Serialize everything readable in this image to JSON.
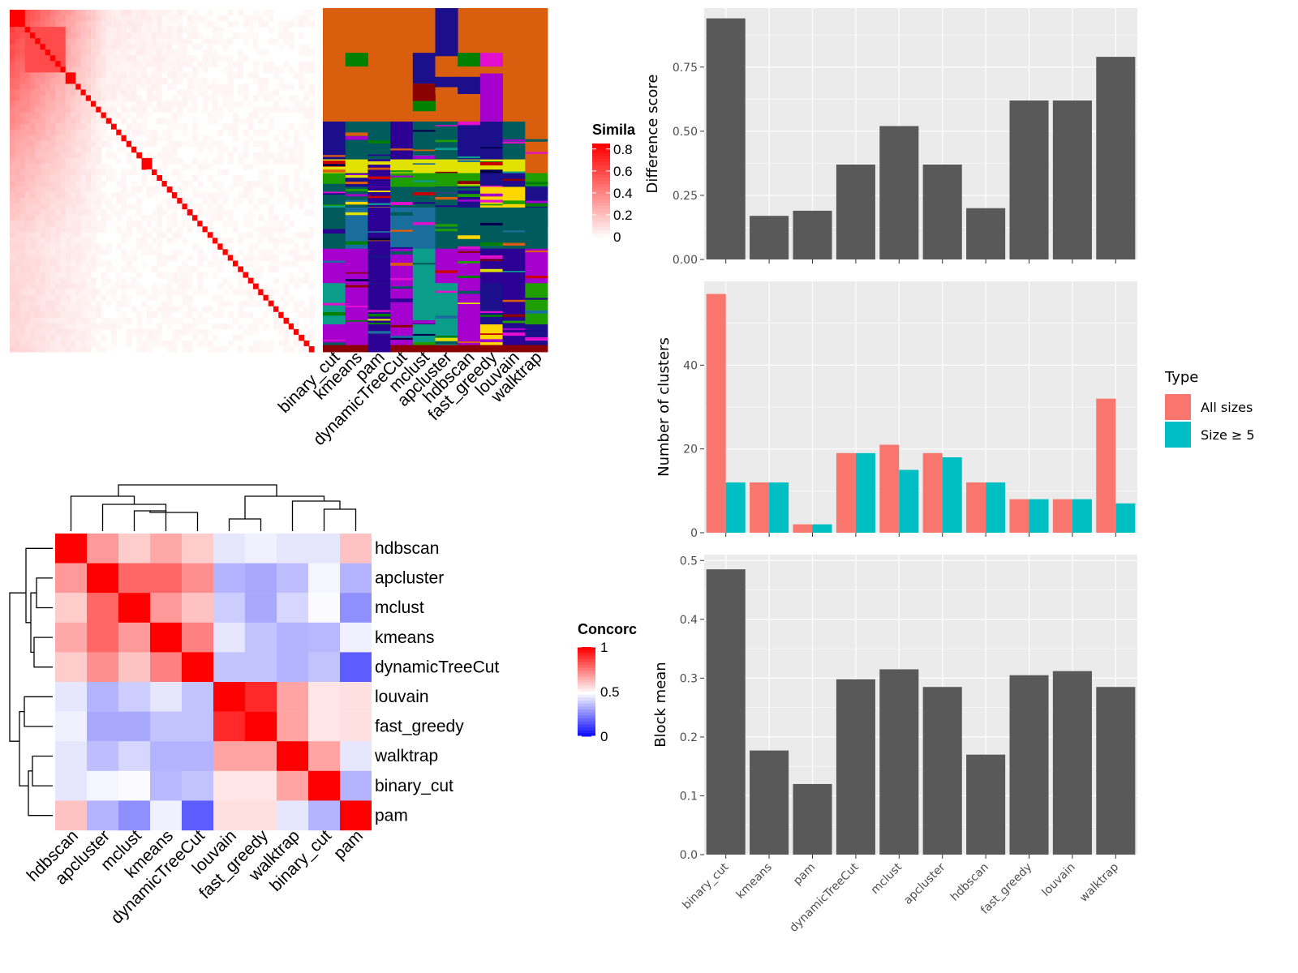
{
  "colors": {
    "panel_bg": "#ebebeb",
    "grid": "#ffffff",
    "bar": "#595959",
    "all_sizes": "#f8766d",
    "size_ge_5": "#00bfc4",
    "high": "#ff0000",
    "mid": "#ffffff",
    "low": "#0000ff"
  },
  "chart_data": [
    {
      "type": "heatmap",
      "name": "similarity-matrix",
      "legend": {
        "title": "Similarity",
        "title_visible": "Simila",
        "ticks": [
          0.8,
          0.6,
          0.4,
          0.2,
          0
        ],
        "tick_labels": [
          "0.8",
          "0.6",
          "0.4",
          "0.2",
          "0"
        ],
        "range": [
          0,
          0.85
        ]
      },
      "blocks": [
        {
          "start": 0.0,
          "end": 0.05,
          "value": 0.85
        },
        {
          "start": 0.05,
          "end": 0.17,
          "value": 0.6
        },
        {
          "start": 0.17,
          "end": 0.21,
          "value": 0.85
        },
        {
          "start": 0.42,
          "end": 0.46,
          "value": 0.85
        }
      ]
    },
    {
      "type": "heatmap",
      "name": "cluster-assignments",
      "columns": [
        "binary_cut",
        "kmeans",
        "pam",
        "dynamicTreeCut",
        "mclust",
        "apcluster",
        "hdbscan",
        "fast_greedy",
        "louvain",
        "walktrap"
      ],
      "palette": [
        "#d95f0e",
        "#1b0f8c",
        "#008000",
        "#ffd700",
        "#e2e200",
        "#1f9e00",
        "#005c5c",
        "#1a6e9e",
        "#a600cf",
        "#0a9e8a",
        "#2b0092",
        "#e30fcf",
        "#8b0000",
        "#cc0000",
        "#00004d"
      ],
      "bands": [
        {
          "start": 0.0,
          "end": 0.33,
          "values": [
            0,
            0,
            0,
            0,
            0,
            0,
            0,
            0,
            0,
            0
          ]
        },
        {
          "start": 0.33,
          "end": 0.44,
          "values": [
            1,
            6,
            6,
            10,
            6,
            6,
            1,
            1,
            6,
            0
          ]
        },
        {
          "start": 0.44,
          "end": 0.48,
          "values": [
            4,
            4,
            10,
            4,
            4,
            4,
            4,
            4,
            4,
            0
          ]
        },
        {
          "start": 0.48,
          "end": 0.52,
          "values": [
            5,
            1,
            10,
            5,
            5,
            5,
            5,
            1,
            1,
            5
          ]
        },
        {
          "start": 0.52,
          "end": 0.58,
          "values": [
            6,
            6,
            10,
            6,
            6,
            6,
            1,
            3,
            3,
            1
          ]
        },
        {
          "start": 0.58,
          "end": 0.7,
          "values": [
            6,
            7,
            10,
            7,
            7,
            6,
            6,
            6,
            6,
            6
          ]
        },
        {
          "start": 0.7,
          "end": 0.8,
          "values": [
            8,
            8,
            10,
            8,
            9,
            8,
            8,
            10,
            10,
            8
          ]
        },
        {
          "start": 0.8,
          "end": 0.92,
          "values": [
            9,
            8,
            10,
            8,
            9,
            9,
            8,
            1,
            10,
            5
          ]
        },
        {
          "start": 0.92,
          "end": 0.98,
          "values": [
            8,
            8,
            10,
            8,
            9,
            9,
            8,
            3,
            10,
            1
          ]
        },
        {
          "start": 0.98,
          "end": 1.0,
          "values": [
            12,
            12,
            10,
            12,
            12,
            12,
            12,
            12,
            12,
            12
          ]
        }
      ],
      "streaks": [
        {
          "col": 1,
          "start": 0.13,
          "end": 0.17,
          "value": 2
        },
        {
          "col": 4,
          "start": 0.13,
          "end": 0.22,
          "value": 1
        },
        {
          "col": 4,
          "start": 0.22,
          "end": 0.27,
          "value": 12
        },
        {
          "col": 4,
          "start": 0.27,
          "end": 0.3,
          "value": 2
        },
        {
          "col": 5,
          "start": 0.0,
          "end": 0.14,
          "value": 1
        },
        {
          "col": 5,
          "start": 0.14,
          "end": 0.2,
          "value": 0
        },
        {
          "col": 5,
          "start": 0.2,
          "end": 0.23,
          "value": 1
        },
        {
          "col": 5,
          "start": 0.23,
          "end": 0.25,
          "value": 0
        },
        {
          "col": 6,
          "start": 0.13,
          "end": 0.17,
          "value": 2
        },
        {
          "col": 6,
          "start": 0.2,
          "end": 0.25,
          "value": 1
        },
        {
          "col": 7,
          "start": 0.13,
          "end": 0.17,
          "value": 11
        },
        {
          "col": 7,
          "start": 0.19,
          "end": 0.33,
          "value": 8
        }
      ]
    },
    {
      "type": "heatmap",
      "name": "concordance-matrix",
      "labels": [
        "hdbscan",
        "apcluster",
        "mclust",
        "kmeans",
        "dynamicTreeCut",
        "louvain",
        "fast_greedy",
        "walktrap",
        "binary_cut",
        "pam"
      ],
      "values": [
        [
          1.0,
          0.7,
          0.6,
          0.67,
          0.6,
          0.45,
          0.47,
          0.45,
          0.45,
          0.62
        ],
        [
          0.7,
          1.0,
          0.8,
          0.8,
          0.72,
          0.35,
          0.33,
          0.37,
          0.48,
          0.35
        ],
        [
          0.6,
          0.8,
          1.0,
          0.7,
          0.62,
          0.4,
          0.33,
          0.42,
          0.49,
          0.28
        ],
        [
          0.67,
          0.8,
          0.7,
          1.0,
          0.75,
          0.45,
          0.38,
          0.35,
          0.36,
          0.47
        ],
        [
          0.6,
          0.72,
          0.62,
          0.75,
          1.0,
          0.38,
          0.38,
          0.35,
          0.38,
          0.18
        ],
        [
          0.45,
          0.35,
          0.4,
          0.45,
          0.38,
          1.0,
          0.92,
          0.68,
          0.55,
          0.56
        ],
        [
          0.47,
          0.33,
          0.33,
          0.38,
          0.38,
          0.92,
          1.0,
          0.68,
          0.55,
          0.56
        ],
        [
          0.45,
          0.37,
          0.42,
          0.35,
          0.35,
          0.68,
          0.68,
          1.0,
          0.68,
          0.45
        ],
        [
          0.45,
          0.48,
          0.49,
          0.36,
          0.38,
          0.55,
          0.55,
          0.68,
          1.0,
          0.35
        ],
        [
          0.62,
          0.35,
          0.28,
          0.47,
          0.18,
          0.56,
          0.56,
          0.45,
          0.35,
          1.0
        ]
      ],
      "legend": {
        "title": "Concordance",
        "title_visible": "Concorc",
        "ticks": [
          1,
          0.5,
          0
        ],
        "tick_labels": [
          "1",
          "0.5",
          "0"
        ]
      }
    },
    {
      "type": "bar",
      "name": "difference-score",
      "categories": [
        "binary_cut",
        "kmeans",
        "pam",
        "dynamicTreeCut",
        "mclust",
        "apcluster",
        "hdbscan",
        "fast_greedy",
        "louvain",
        "walktrap"
      ],
      "values": [
        0.94,
        0.17,
        0.19,
        0.37,
        0.52,
        0.37,
        0.2,
        0.62,
        0.62,
        0.79
      ],
      "ylabel": "Difference score",
      "ylim": [
        0,
        0.98
      ],
      "yticks": [
        0,
        0.25,
        0.5,
        0.75
      ],
      "ytick_labels": [
        "0.00",
        "0.25",
        "0.50",
        "0.75"
      ],
      "grid": true
    },
    {
      "type": "bar",
      "name": "number-of-clusters",
      "categories": [
        "binary_cut",
        "kmeans",
        "pam",
        "dynamicTreeCut",
        "mclust",
        "apcluster",
        "hdbscan",
        "fast_greedy",
        "louvain",
        "walktrap"
      ],
      "series": [
        {
          "name": "All sizes",
          "values": [
            57,
            12,
            2,
            19,
            21,
            19,
            12,
            8,
            8,
            32
          ]
        },
        {
          "name": "Size ≥ 5",
          "values": [
            12,
            12,
            2,
            19,
            15,
            18,
            12,
            8,
            8,
            7
          ]
        }
      ],
      "ylabel": "Number of clusters",
      "ylim": [
        0,
        60
      ],
      "yticks": [
        0,
        20,
        40
      ],
      "ytick_labels": [
        "0",
        "20",
        "40"
      ],
      "legend": {
        "title": "Type",
        "position": "right"
      },
      "grid": true
    },
    {
      "type": "bar",
      "name": "block-mean",
      "categories": [
        "binary_cut",
        "kmeans",
        "pam",
        "dynamicTreeCut",
        "mclust",
        "apcluster",
        "hdbscan",
        "fast_greedy",
        "louvain",
        "walktrap"
      ],
      "values": [
        0.485,
        0.177,
        0.12,
        0.298,
        0.315,
        0.285,
        0.17,
        0.305,
        0.312,
        0.285
      ],
      "ylabel": "Block mean",
      "ylim": [
        0,
        0.51
      ],
      "yticks": [
        0,
        0.1,
        0.2,
        0.3,
        0.4,
        0.5
      ],
      "ytick_labels": [
        "0.0",
        "0.1",
        "0.2",
        "0.3",
        "0.4",
        "0.5"
      ],
      "grid": true
    }
  ]
}
